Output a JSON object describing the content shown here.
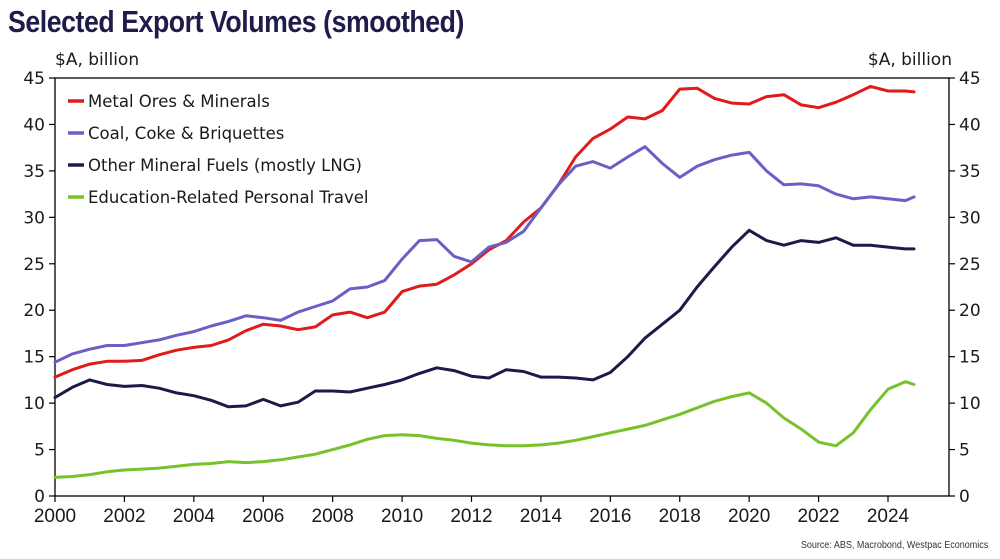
{
  "chart_data": {
    "type": "line",
    "title": "Selected Export Volumes (smoothed)",
    "ylabel_left": "$A, billion",
    "ylabel_right": "$A, billion",
    "xlabel": "",
    "ylim": [
      0,
      45
    ],
    "xlim": [
      2000,
      2025.75
    ],
    "yticks": [
      0,
      5,
      10,
      15,
      20,
      25,
      30,
      35,
      40,
      45
    ],
    "xticks": [
      2000,
      2002,
      2004,
      2006,
      2008,
      2010,
      2012,
      2014,
      2016,
      2018,
      2020,
      2022,
      2024
    ],
    "grid": false,
    "legend_position": "top-left",
    "source": "Source: ABS, Macrobond, Westpac Economics",
    "x": [
      2000.0,
      2000.5,
      2001.0,
      2001.5,
      2002.0,
      2002.5,
      2003.0,
      2003.5,
      2004.0,
      2004.5,
      2005.0,
      2005.5,
      2006.0,
      2006.5,
      2007.0,
      2007.5,
      2008.0,
      2008.5,
      2009.0,
      2009.5,
      2010.0,
      2010.5,
      2011.0,
      2011.5,
      2012.0,
      2012.5,
      2013.0,
      2013.5,
      2014.0,
      2014.5,
      2015.0,
      2015.5,
      2016.0,
      2016.5,
      2017.0,
      2017.5,
      2018.0,
      2018.5,
      2019.0,
      2019.5,
      2020.0,
      2020.5,
      2021.0,
      2021.5,
      2022.0,
      2022.5,
      2023.0,
      2023.5,
      2024.0,
      2024.5,
      2024.75
    ],
    "series": [
      {
        "name": "Metal Ores & Minerals",
        "color": "#e01b1b",
        "values": [
          12.8,
          13.6,
          14.2,
          14.5,
          14.5,
          14.6,
          15.2,
          15.7,
          16.0,
          16.2,
          16.8,
          17.8,
          18.5,
          18.3,
          17.9,
          18.2,
          19.5,
          19.8,
          19.2,
          19.8,
          22.0,
          22.6,
          22.8,
          23.8,
          25.0,
          26.5,
          27.5,
          29.5,
          31.0,
          33.5,
          36.5,
          38.5,
          39.5,
          40.8,
          40.6,
          41.5,
          43.8,
          43.9,
          42.8,
          42.3,
          42.2,
          43.0,
          43.2,
          42.1,
          41.8,
          42.4,
          43.2,
          44.1,
          43.6,
          43.6,
          43.5
        ]
      },
      {
        "name": "Coal, Coke & Briquettes",
        "color": "#6b5fc7",
        "values": [
          14.4,
          15.3,
          15.8,
          16.2,
          16.2,
          16.5,
          16.8,
          17.3,
          17.7,
          18.3,
          18.8,
          19.4,
          19.2,
          18.9,
          19.8,
          20.4,
          21.0,
          22.3,
          22.5,
          23.2,
          25.5,
          27.5,
          27.6,
          25.8,
          25.2,
          26.8,
          27.3,
          28.5,
          31.0,
          33.5,
          35.5,
          36.0,
          35.3,
          36.5,
          37.6,
          35.8,
          34.3,
          35.5,
          36.2,
          36.7,
          37.0,
          35.0,
          33.5,
          33.6,
          33.4,
          32.5,
          32.0,
          32.2,
          32.0,
          31.8,
          32.2
        ]
      },
      {
        "name": "Other Mineral Fuels (mostly LNG)",
        "color": "#1c1a4a",
        "values": [
          10.6,
          11.7,
          12.5,
          12.0,
          11.8,
          11.9,
          11.6,
          11.1,
          10.8,
          10.3,
          9.6,
          9.7,
          10.4,
          9.7,
          10.1,
          11.3,
          11.3,
          11.2,
          11.6,
          12.0,
          12.5,
          13.2,
          13.8,
          13.5,
          12.9,
          12.7,
          13.6,
          13.4,
          12.8,
          12.8,
          12.7,
          12.5,
          13.3,
          15.0,
          17.0,
          18.5,
          20.0,
          22.5,
          24.7,
          26.8,
          28.6,
          27.5,
          27.0,
          27.5,
          27.3,
          27.8,
          27.0,
          27.0,
          26.8,
          26.6,
          26.6
        ]
      },
      {
        "name": "Education-Related Personal Travel",
        "color": "#77c22a",
        "values": [
          2.0,
          2.1,
          2.3,
          2.6,
          2.8,
          2.9,
          3.0,
          3.2,
          3.4,
          3.5,
          3.7,
          3.6,
          3.7,
          3.9,
          4.2,
          4.5,
          5.0,
          5.5,
          6.1,
          6.5,
          6.6,
          6.5,
          6.2,
          6.0,
          5.7,
          5.5,
          5.4,
          5.4,
          5.5,
          5.7,
          6.0,
          6.4,
          6.8,
          7.2,
          7.6,
          8.2,
          8.8,
          9.5,
          10.2,
          10.7,
          11.1,
          10.0,
          8.4,
          7.2,
          5.8,
          5.4,
          6.8,
          9.3,
          11.5,
          12.3,
          12.0
        ]
      }
    ]
  }
}
